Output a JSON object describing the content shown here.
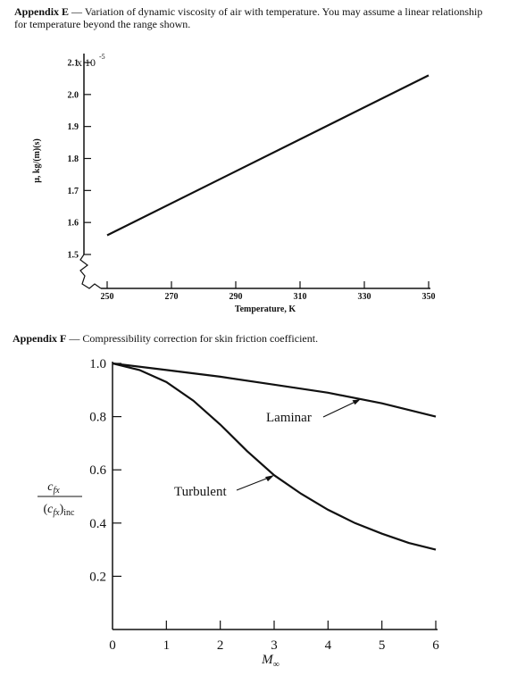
{
  "captions": {
    "e_label": "Appendix E",
    "e_text": "Variation of dynamic viscosity of air with temperature. You may assume a linear relationship for temperature beyond the range shown.",
    "f_label": "Appendix F",
    "f_text": "Compressibility correction for skin friction coefficient."
  },
  "chart_data": [
    {
      "type": "line",
      "title": "",
      "xlabel": "Temperature, K",
      "ylabel": "μ, kg/(m)(s)",
      "y_multiplier": "x 10",
      "y_multiplier_exp": "-5",
      "xlim": [
        240,
        350
      ],
      "ylim": [
        1.5,
        2.1
      ],
      "xticks": [
        250,
        270,
        290,
        310,
        330,
        350
      ],
      "yticks": [
        1.5,
        1.6,
        1.7,
        1.8,
        1.9,
        2.0,
        2.1
      ],
      "axis_break": true,
      "grid": false,
      "series": [
        {
          "x": [
            250,
            350
          ],
          "y": [
            1.56,
            2.06
          ]
        }
      ]
    },
    {
      "type": "line",
      "title": "",
      "xlabel": "M∞",
      "ylabel": "c_fx / (c_fx)_inc",
      "xlim": [
        0,
        6
      ],
      "ylim": [
        0,
        1.0
      ],
      "xticks": [
        0,
        1,
        2,
        3,
        4,
        5,
        6
      ],
      "yticks": [
        0.2,
        0.4,
        0.6,
        0.8,
        1.0
      ],
      "grid": false,
      "annotations": [
        "Laminar",
        "Turbulent"
      ],
      "series": [
        {
          "name": "Laminar",
          "x": [
            0,
            1,
            2,
            3,
            4,
            5,
            6
          ],
          "y": [
            1.0,
            0.975,
            0.95,
            0.92,
            0.89,
            0.85,
            0.8
          ]
        },
        {
          "name": "Turbulent",
          "x": [
            0,
            0.5,
            1,
            1.5,
            2,
            2.5,
            3,
            3.5,
            4,
            4.5,
            5,
            5.5,
            6
          ],
          "y": [
            1.0,
            0.975,
            0.93,
            0.86,
            0.77,
            0.67,
            0.58,
            0.51,
            0.45,
            0.4,
            0.36,
            0.325,
            0.3
          ]
        }
      ]
    }
  ]
}
